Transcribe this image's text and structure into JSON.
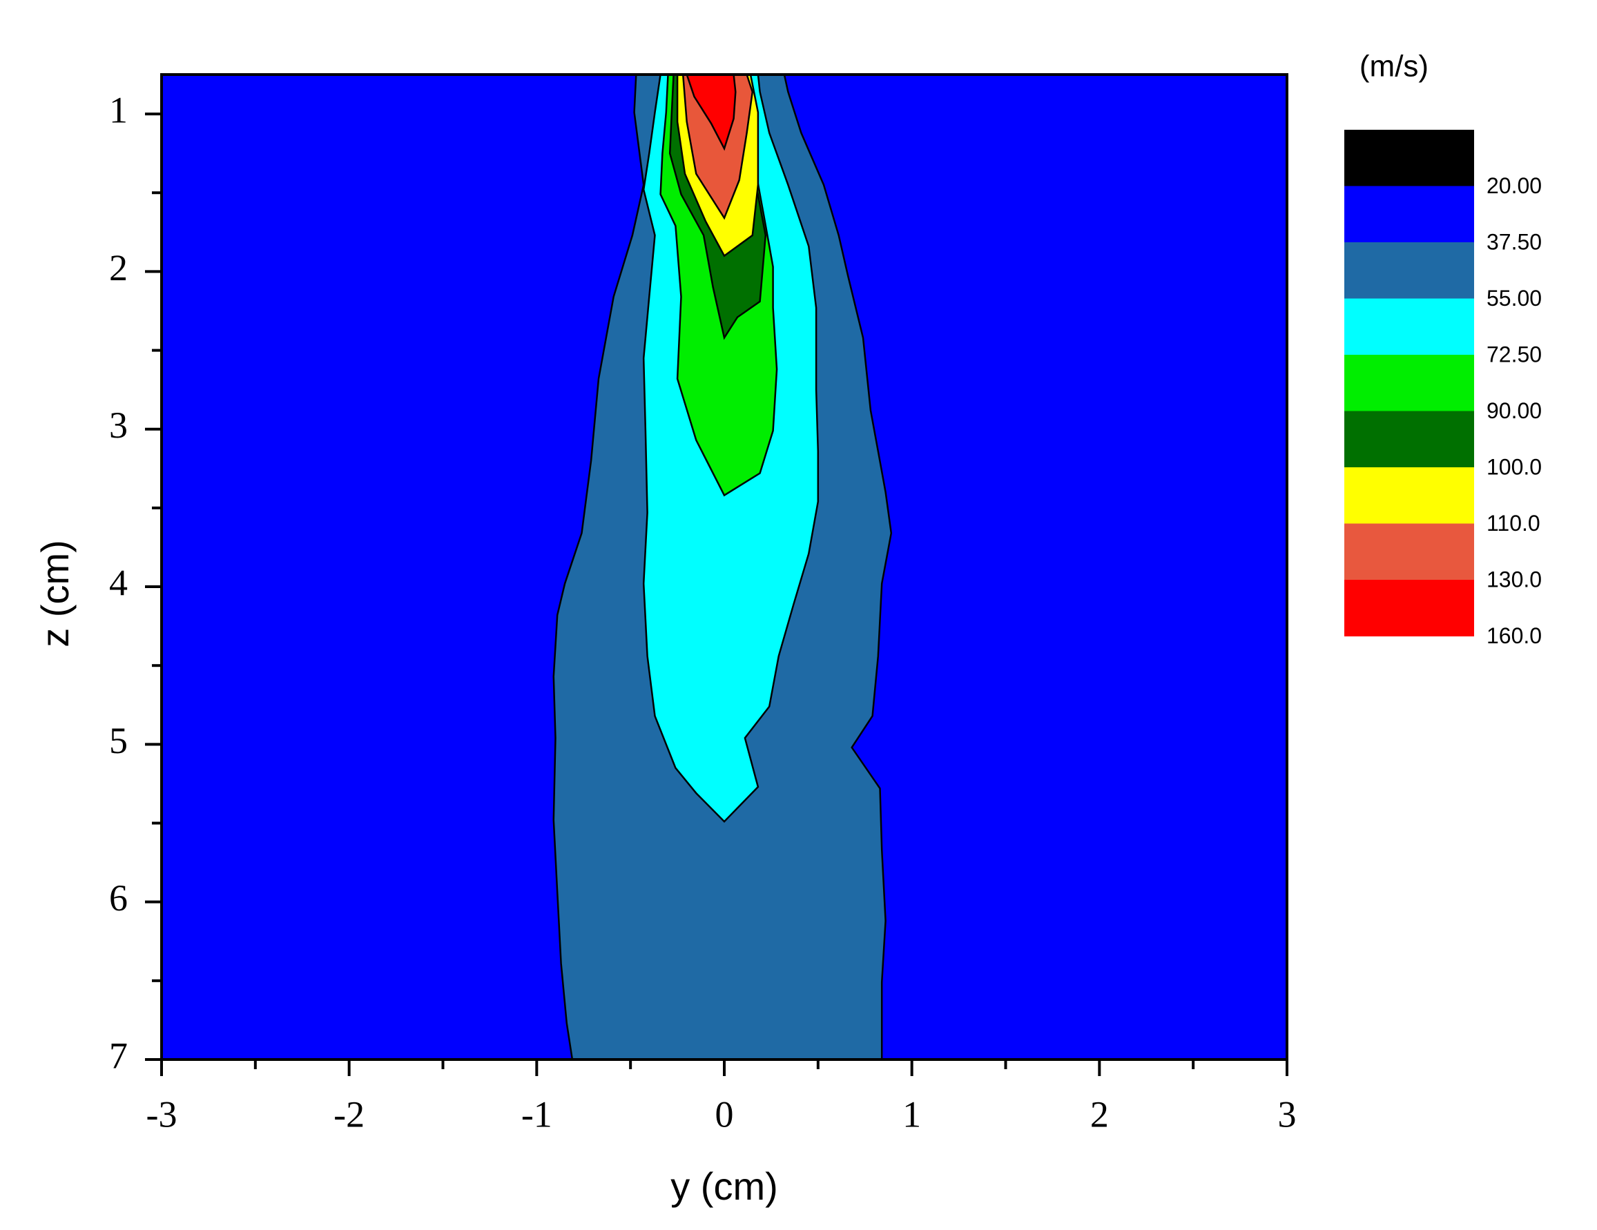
{
  "chart_data": {
    "type": "contour",
    "xlabel": "y (cm)",
    "ylabel": "z (cm)",
    "colorbar_title": "(m/s)",
    "xlim": [
      -3,
      3
    ],
    "ylim": [
      0.75,
      7
    ],
    "y_inverted": true,
    "xticks": [
      -3,
      -2,
      -1,
      0,
      1,
      2,
      3
    ],
    "xminorticks": [
      -2.5,
      -1.5,
      -0.5,
      0.5,
      1.5,
      2.5
    ],
    "yticks": [
      1,
      2,
      3,
      4,
      5,
      6,
      7
    ],
    "yminorticks": [
      1.5,
      2.5,
      3.5,
      4.5,
      5.5,
      6.5
    ],
    "background": "#0000ff",
    "regions": [
      {
        "color": "#1f6aa5",
        "x": [
          -0.47,
          -0.48,
          -0.43,
          -0.49,
          -0.59,
          -0.67,
          -0.71,
          -0.76,
          -0.85,
          -0.89,
          -0.91,
          -0.9,
          -0.91,
          -0.89,
          -0.87,
          -0.84,
          -0.81,
          0.84,
          0.84,
          0.86,
          0.84,
          0.83,
          0.68,
          0.79,
          0.82,
          0.84,
          0.89,
          0.86,
          0.82,
          0.78,
          0.74,
          0.66,
          0.61,
          0.53,
          0.41,
          0.34,
          0.32
        ],
        "y": [
          0.75,
          0.99,
          1.45,
          1.77,
          2.16,
          2.68,
          3.2,
          3.66,
          3.98,
          4.18,
          4.57,
          4.96,
          5.48,
          5.94,
          6.39,
          6.77,
          7.0,
          7.0,
          6.51,
          6.12,
          5.67,
          5.28,
          5.02,
          4.82,
          4.44,
          3.98,
          3.66,
          3.4,
          3.14,
          2.88,
          2.42,
          2.03,
          1.77,
          1.45,
          1.12,
          0.86,
          0.75
        ]
      },
      {
        "color": "#00ffff",
        "x": [
          -0.34,
          -0.37,
          -0.4,
          -0.43,
          -0.37,
          -0.4,
          -0.43,
          -0.42,
          -0.41,
          -0.43,
          -0.41,
          -0.37,
          -0.26,
          -0.15,
          0,
          0.18,
          0.11,
          0.24,
          0.29,
          0.37,
          0.45,
          0.5,
          0.5,
          0.49,
          0.49,
          0.45,
          0.34,
          0.24,
          0.19,
          0.18
        ],
        "y": [
          0.75,
          0.99,
          1.25,
          1.48,
          1.77,
          2.16,
          2.55,
          3.01,
          3.53,
          3.98,
          4.44,
          4.82,
          5.15,
          5.31,
          5.49,
          5.27,
          4.96,
          4.76,
          4.44,
          4.11,
          3.79,
          3.46,
          3.14,
          2.75,
          2.23,
          1.84,
          1.45,
          1.12,
          0.86,
          0.75
        ]
      },
      {
        "color": "#00ee00",
        "x": [
          -0.3,
          -0.31,
          -0.33,
          -0.34,
          -0.26,
          -0.23,
          -0.25,
          -0.15,
          0,
          0.19,
          0.26,
          0.28,
          0.26,
          0.26,
          0.21,
          0.15,
          0.12,
          0.12
        ],
        "y": [
          0.75,
          0.99,
          1.25,
          1.51,
          1.71,
          2.16,
          2.68,
          3.07,
          3.42,
          3.28,
          3.01,
          2.62,
          2.23,
          1.97,
          1.64,
          1.25,
          0.94,
          0.75
        ]
      },
      {
        "color": "#007000",
        "x": [
          -0.27,
          -0.28,
          -0.29,
          -0.23,
          -0.11,
          -0.06,
          0,
          0.07,
          0.19,
          0.22,
          0.17,
          0.12,
          0.11
        ],
        "y": [
          0.75,
          0.99,
          1.25,
          1.51,
          1.77,
          2.1,
          2.42,
          2.29,
          2.19,
          1.77,
          1.45,
          1.06,
          0.75
        ]
      },
      {
        "color": "#ffff00",
        "x": [
          -0.25,
          -0.25,
          -0.21,
          -0.1,
          0,
          0.15,
          0.18,
          0.18,
          0.14
        ],
        "y": [
          0.75,
          1.05,
          1.38,
          1.68,
          1.9,
          1.77,
          1.45,
          0.99,
          0.75
        ]
      },
      {
        "color": "#e8573a",
        "x": [
          -0.22,
          -0.2,
          -0.15,
          0,
          0.08,
          0.12,
          0.15,
          0.12
        ],
        "y": [
          0.75,
          1.05,
          1.38,
          1.66,
          1.42,
          1.12,
          0.86,
          0.75
        ]
      },
      {
        "color": "#ff0000",
        "x": [
          -0.2,
          -0.16,
          -0.07,
          0,
          0.05,
          0.06,
          0.05
        ],
        "y": [
          0.75,
          0.89,
          1.06,
          1.22,
          1.03,
          0.86,
          0.75
        ]
      }
    ],
    "colorbar": {
      "colors": [
        "#000000",
        "#0000ff",
        "#1f6aa5",
        "#00ffff",
        "#00ee00",
        "#007000",
        "#ffff00",
        "#e8583e",
        "#ff0000"
      ],
      "ticks": [
        {
          "value": 20,
          "label": "20.00"
        },
        {
          "value": 37.5,
          "label": "37.50"
        },
        {
          "value": 55,
          "label": "55.00"
        },
        {
          "value": 72.5,
          "label": "72.50"
        },
        {
          "value": 90,
          "label": "90.00"
        },
        {
          "value": 100,
          "label": "100.0"
        },
        {
          "value": 110,
          "label": "110.0"
        },
        {
          "value": 130,
          "label": "130.0"
        },
        {
          "value": 160,
          "label": "160.0"
        }
      ]
    }
  }
}
